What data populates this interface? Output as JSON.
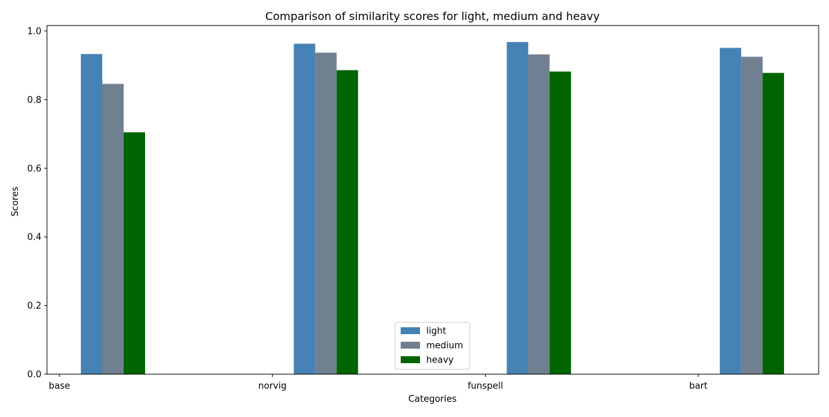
{
  "chart_data": {
    "type": "bar",
    "title": "Comparison of similarity scores for light, medium and heavy",
    "xlabel": "Categories",
    "ylabel": "Scores",
    "categories": [
      "base",
      "norvig",
      "funspell",
      "bart"
    ],
    "series": [
      {
        "name": "light",
        "color": "#4682b4",
        "values": [
          0.933,
          0.963,
          0.968,
          0.951
        ]
      },
      {
        "name": "medium",
        "color": "#708090",
        "values": [
          0.846,
          0.937,
          0.932,
          0.925
        ]
      },
      {
        "name": "heavy",
        "color": "#006400",
        "values": [
          0.705,
          0.886,
          0.882,
          0.878
        ]
      }
    ],
    "ylim": [
      0,
      1.0
    ],
    "yticks": [
      "0.0",
      "0.2",
      "0.4",
      "0.6",
      "0.8",
      "1.0"
    ],
    "grid": false,
    "legend_position": "bottom-center"
  }
}
